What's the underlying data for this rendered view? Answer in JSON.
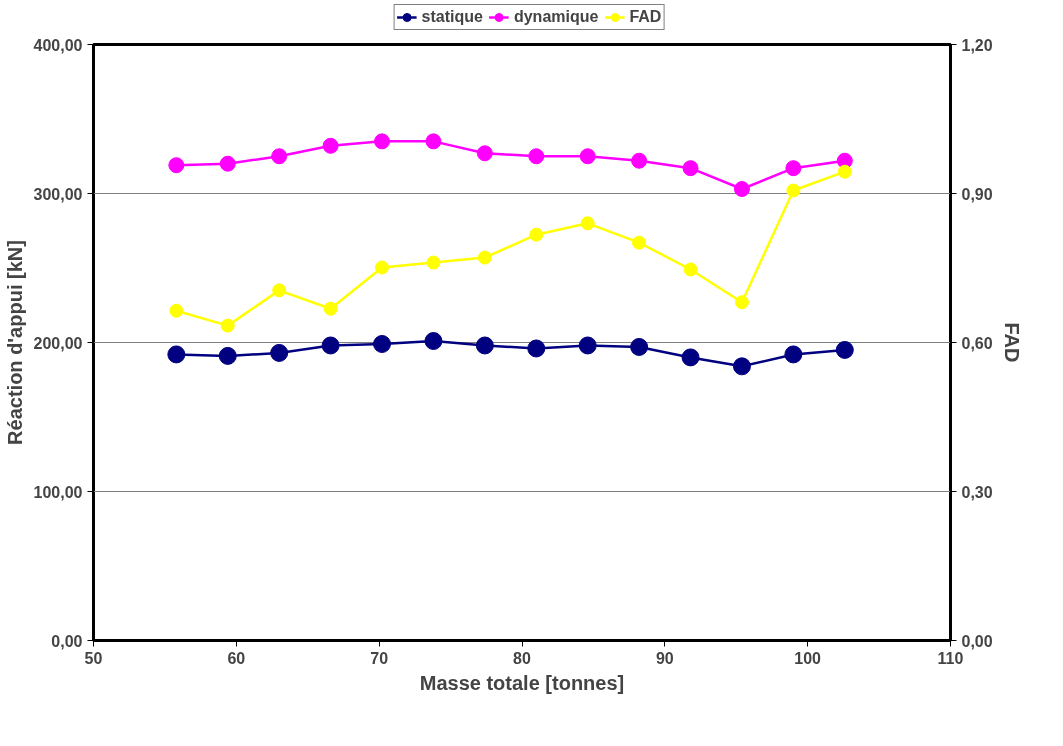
{
  "chart_data": {
    "type": "line",
    "xlabel": "Masse totale [tonnes]",
    "ylabel": "Réaction d'appui [kN]",
    "y2label": "FAD",
    "x": [
      55.8,
      59.4,
      63.0,
      66.6,
      70.2,
      73.8,
      77.4,
      81.0,
      84.6,
      88.2,
      91.8,
      95.4,
      99.0,
      102.6
    ],
    "series": [
      {
        "name": "statique",
        "color": "#000080",
        "values": [
          192,
          191,
          193,
          198,
          199,
          201,
          198,
          196,
          198,
          197,
          190,
          184,
          192,
          195
        ]
      },
      {
        "name": "dynamique",
        "color": "#ff00ff",
        "values": [
          319,
          320,
          325,
          332,
          335,
          335,
          327,
          325,
          325,
          322,
          317,
          303,
          317,
          322
        ]
      },
      {
        "name": "FAD",
        "color": "#ffff00",
        "axis": "y2",
        "values": [
          0.664,
          0.634,
          0.705,
          0.668,
          0.751,
          0.761,
          0.771,
          0.817,
          0.84,
          0.801,
          0.747,
          0.681,
          0.906,
          0.944
        ]
      }
    ],
    "xlim": [
      50,
      110
    ],
    "xticks": [
      50,
      60,
      70,
      80,
      90,
      100,
      110
    ],
    "ylim": [
      0,
      400
    ],
    "yticks": [
      {
        "value": 0,
        "label": "0,00"
      },
      {
        "value": 100,
        "label": "100,00"
      },
      {
        "value": 200,
        "label": "200,00"
      },
      {
        "value": 300,
        "label": "300,00"
      },
      {
        "value": 400,
        "label": "400,00"
      }
    ],
    "y2lim": [
      0,
      1.2
    ],
    "y2ticks": [
      {
        "value": 0,
        "label": "0,00"
      },
      {
        "value": 0.3,
        "label": "0,30"
      },
      {
        "value": 0.6,
        "label": "0,60"
      },
      {
        "value": 0.9,
        "label": "0,90"
      },
      {
        "value": 1.2,
        "label": "1,20"
      }
    ],
    "grid": "y",
    "legend": "top",
    "marker": "circle",
    "line_style": "solid"
  }
}
